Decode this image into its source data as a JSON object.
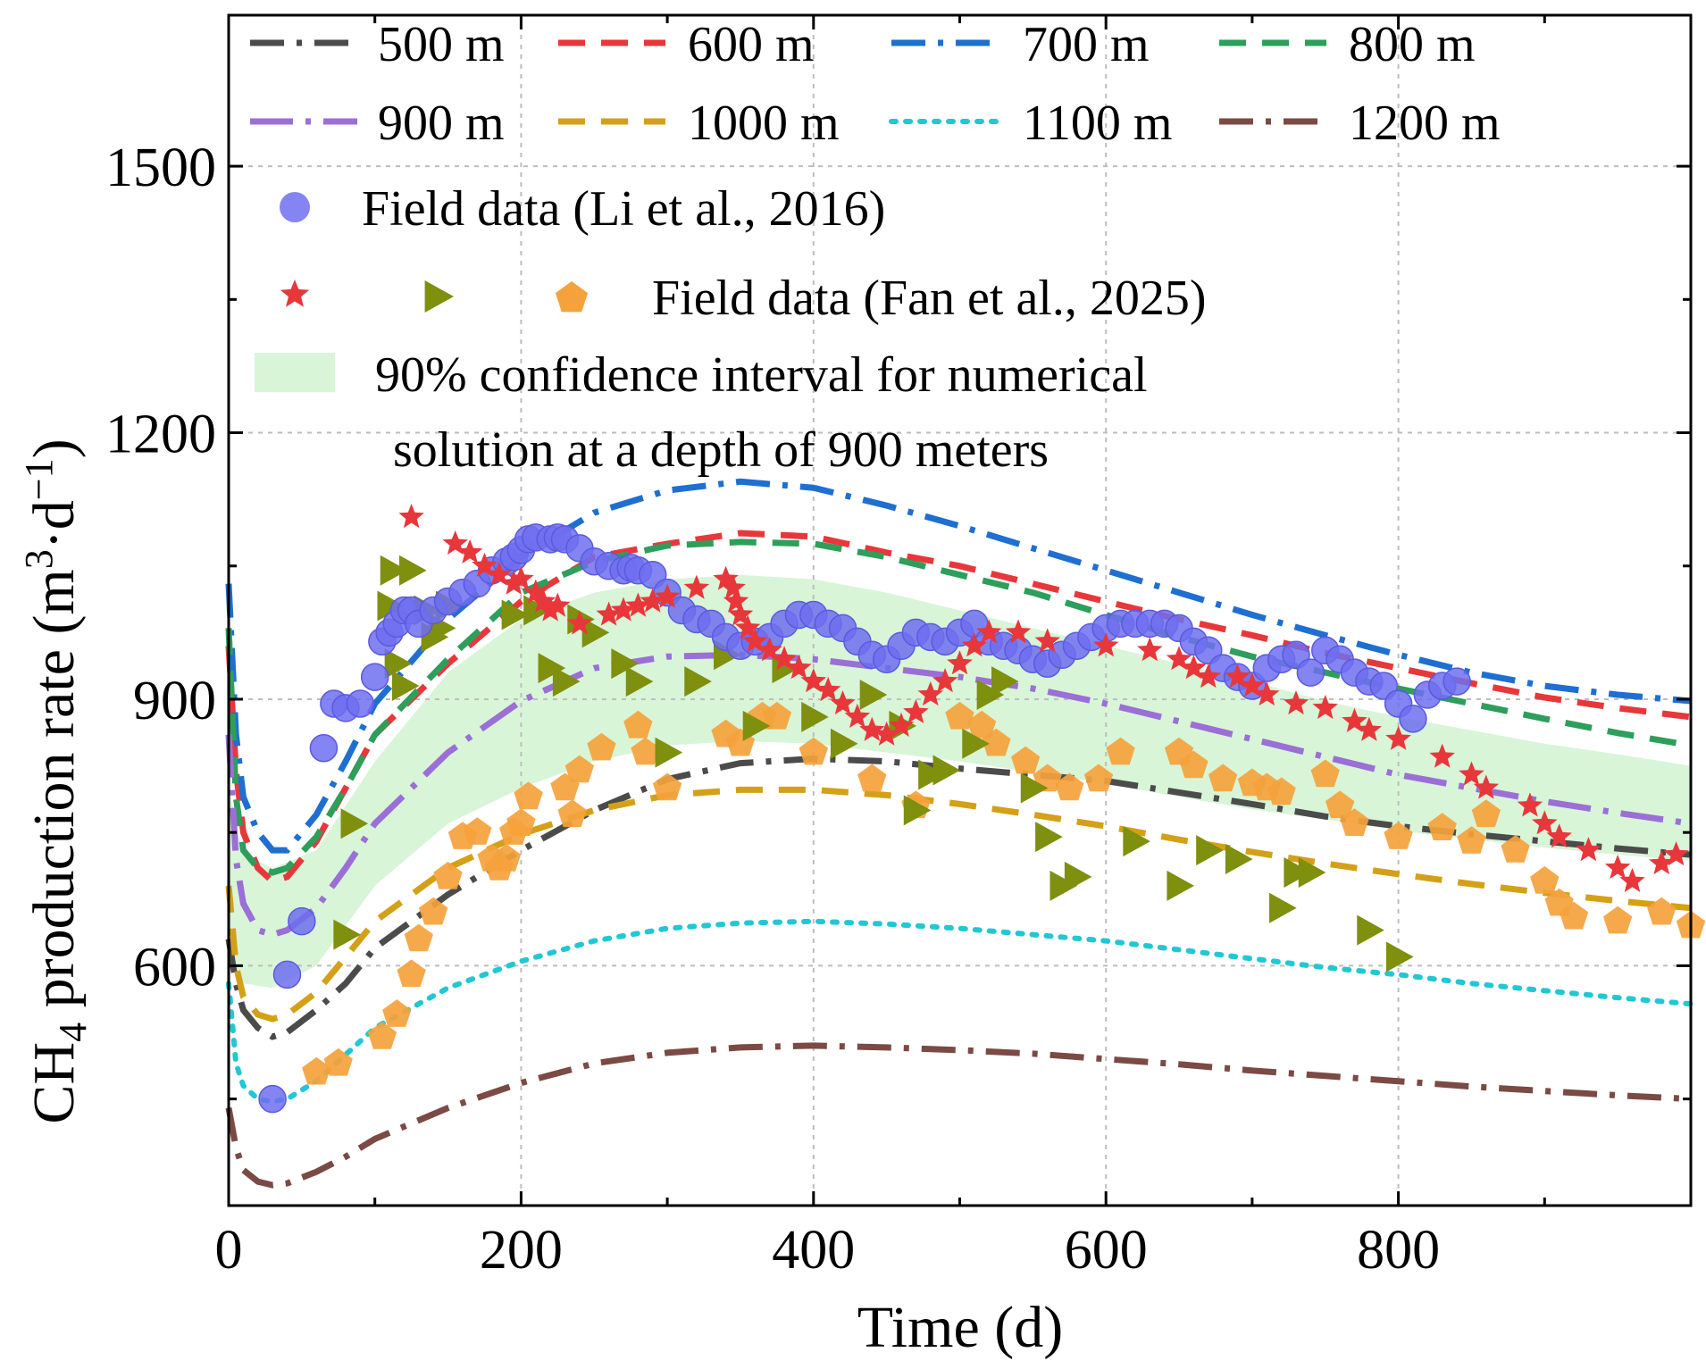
{
  "chart_data": {
    "type": "line",
    "xlabel": "Time (d)",
    "ylabel_parts": {
      "a": "CH",
      "sub": "4",
      "b": " production rate (m",
      "sup1": "3",
      "c": "·d",
      "sup2": "−1",
      "d": ")"
    },
    "xlim": [
      0,
      1000
    ],
    "ylim": [
      330,
      1670
    ],
    "x_ticks": [
      0,
      200,
      400,
      600,
      800
    ],
    "x_minor_ticks": [
      100,
      300,
      500,
      700,
      900
    ],
    "y_ticks": [
      600,
      900,
      1200,
      1500
    ],
    "y_minor_ticks": [
      450,
      750,
      1050,
      1350
    ],
    "grid": true,
    "series": [
      {
        "name": "500 m",
        "color": "#4b4b4b",
        "dash": "dashdot",
        "x": [
          0,
          5,
          10,
          20,
          30,
          40,
          60,
          80,
          100,
          150,
          200,
          250,
          300,
          350,
          400,
          450,
          500,
          550,
          600,
          650,
          700,
          750,
          800,
          850,
          900,
          950,
          1000
        ],
        "y": [
          630,
          580,
          550,
          530,
          520,
          525,
          550,
          580,
          620,
          680,
          730,
          775,
          810,
          828,
          833,
          830,
          822,
          815,
          808,
          795,
          782,
          768,
          757,
          748,
          740,
          732,
          725
        ]
      },
      {
        "name": "600 m",
        "color": "#e8373b",
        "dash": "dash",
        "x": [
          0,
          5,
          10,
          20,
          30,
          40,
          60,
          80,
          100,
          150,
          200,
          250,
          300,
          350,
          400,
          450,
          500,
          550,
          600,
          650,
          700,
          750,
          800,
          850,
          900,
          950,
          1000
        ],
        "y": [
          960,
          820,
          750,
          710,
          695,
          700,
          740,
          800,
          860,
          940,
          1010,
          1060,
          1075,
          1087,
          1083,
          1065,
          1050,
          1030,
          1010,
          990,
          972,
          952,
          935,
          918,
          902,
          890,
          880
        ]
      },
      {
        "name": "700 m",
        "color": "#1f6fd1",
        "dash": "dashdot",
        "x": [
          0,
          5,
          10,
          20,
          30,
          40,
          60,
          80,
          100,
          150,
          200,
          250,
          300,
          350,
          400,
          450,
          500,
          550,
          600,
          650,
          700,
          750,
          800,
          850,
          900,
          950,
          1000
        ],
        "y": [
          1030,
          860,
          790,
          750,
          730,
          730,
          770,
          830,
          895,
          990,
          1060,
          1110,
          1135,
          1145,
          1138,
          1118,
          1095,
          1070,
          1045,
          1020,
          995,
          972,
          950,
          930,
          915,
          905,
          898
        ]
      },
      {
        "name": "800 m",
        "color": "#2e9e5b",
        "dash": "dash",
        "x": [
          0,
          5,
          10,
          20,
          30,
          40,
          60,
          80,
          100,
          150,
          200,
          250,
          300,
          350,
          400,
          450,
          500,
          550,
          600,
          650,
          700,
          750,
          800,
          850,
          900,
          950,
          1000
        ],
        "y": [
          980,
          790,
          730,
          710,
          705,
          710,
          745,
          800,
          860,
          945,
          1020,
          1055,
          1073,
          1077,
          1075,
          1060,
          1040,
          1020,
          995,
          970,
          948,
          930,
          912,
          895,
          878,
          862,
          848
        ]
      },
      {
        "name": "900 m",
        "color": "#9b6fd6",
        "dash": "longdashdot",
        "x": [
          0,
          5,
          10,
          20,
          30,
          40,
          60,
          80,
          100,
          150,
          200,
          250,
          300,
          350,
          400,
          450,
          500,
          550,
          600,
          650,
          700,
          750,
          800,
          850,
          900,
          950,
          1000
        ],
        "y": [
          860,
          720,
          670,
          640,
          635,
          640,
          665,
          710,
          760,
          840,
          898,
          935,
          948,
          950,
          945,
          935,
          925,
          912,
          895,
          875,
          855,
          835,
          815,
          800,
          785,
          772,
          760
        ]
      },
      {
        "name": "1000 m",
        "color": "#d4a017",
        "dash": "dash",
        "x": [
          0,
          5,
          10,
          20,
          30,
          40,
          60,
          80,
          100,
          150,
          200,
          250,
          300,
          350,
          400,
          450,
          500,
          550,
          600,
          650,
          700,
          750,
          800,
          850,
          900,
          950,
          1000
        ],
        "y": [
          690,
          600,
          565,
          545,
          540,
          545,
          570,
          610,
          650,
          710,
          748,
          775,
          792,
          798,
          798,
          792,
          782,
          770,
          757,
          742,
          728,
          715,
          703,
          692,
          682,
          673,
          665
        ]
      },
      {
        "name": "1100 m",
        "color": "#22c7d4",
        "dash": "dot",
        "x": [
          0,
          5,
          10,
          20,
          30,
          40,
          60,
          80,
          100,
          150,
          200,
          250,
          300,
          350,
          400,
          450,
          500,
          550,
          600,
          650,
          700,
          750,
          800,
          850,
          900,
          950,
          1000
        ],
        "y": [
          580,
          490,
          465,
          450,
          447,
          450,
          470,
          500,
          530,
          575,
          605,
          628,
          642,
          648,
          650,
          647,
          642,
          635,
          628,
          618,
          608,
          598,
          590,
          580,
          572,
          564,
          557
        ]
      },
      {
        "name": "1200 m",
        "color": "#7b4a44",
        "dash": "dashdot",
        "x": [
          0,
          5,
          10,
          20,
          30,
          40,
          60,
          80,
          100,
          150,
          200,
          250,
          300,
          350,
          400,
          450,
          500,
          550,
          600,
          650,
          700,
          750,
          800,
          850,
          900,
          950,
          1000
        ],
        "y": [
          440,
          395,
          370,
          357,
          353,
          355,
          368,
          385,
          405,
          440,
          468,
          490,
          502,
          508,
          510,
          508,
          505,
          501,
          495,
          489,
          482,
          476,
          470,
          464,
          459,
          454,
          450
        ]
      }
    ],
    "confidence_band": {
      "name": "90% confidence interval for numerical",
      "name_line2": "solution at a depth of 900 meters",
      "color": "#d8f5d8",
      "x": [
        0,
        10,
        30,
        60,
        100,
        150,
        200,
        250,
        300,
        350,
        400,
        450,
        500,
        550,
        600,
        650,
        700,
        750,
        800,
        850,
        900,
        950,
        1000
      ],
      "upper": [
        800,
        725,
        710,
        730,
        830,
        930,
        990,
        1020,
        1035,
        1040,
        1035,
        1020,
        1000,
        980,
        960,
        940,
        920,
        898,
        880,
        865,
        850,
        838,
        825
      ],
      "lower": [
        600,
        580,
        575,
        600,
        690,
        760,
        800,
        830,
        848,
        853,
        850,
        840,
        830,
        818,
        805,
        790,
        776,
        765,
        752,
        742,
        733,
        725,
        718
      ]
    },
    "field_data_li": {
      "name": "Field data (Li et al., 2016)",
      "color": "#6f6ff0",
      "x": [
        30,
        40,
        50,
        65,
        72,
        80,
        90,
        100,
        105,
        110,
        115,
        120,
        125,
        130,
        140,
        150,
        160,
        170,
        180,
        190,
        195,
        200,
        205,
        210,
        220,
        225,
        230,
        240,
        250,
        260,
        270,
        275,
        280,
        290,
        300,
        310,
        320,
        330,
        340,
        350,
        360,
        370,
        380,
        390,
        400,
        410,
        420,
        430,
        440,
        450,
        460,
        470,
        480,
        490,
        500,
        510,
        520,
        530,
        540,
        550,
        560,
        570,
        580,
        590,
        600,
        610,
        620,
        630,
        640,
        650,
        660,
        670,
        680,
        690,
        700,
        710,
        720,
        730,
        740,
        750,
        760,
        770,
        780,
        790,
        800,
        810,
        820,
        830,
        840
      ],
      "y": [
        450,
        590,
        650,
        845,
        895,
        890,
        895,
        925,
        965,
        975,
        985,
        1000,
        1000,
        985,
        1000,
        1010,
        1020,
        1030,
        1045,
        1055,
        1060,
        1068,
        1080,
        1082,
        1080,
        1082,
        1080,
        1070,
        1055,
        1050,
        1045,
        1048,
        1045,
        1040,
        1020,
        1000,
        990,
        985,
        970,
        960,
        965,
        970,
        985,
        995,
        995,
        985,
        980,
        965,
        950,
        945,
        960,
        975,
        970,
        965,
        975,
        985,
        965,
        960,
        955,
        945,
        940,
        950,
        960,
        970,
        980,
        985,
        985,
        985,
        985,
        980,
        965,
        955,
        935,
        925,
        915,
        935,
        945,
        950,
        930,
        955,
        945,
        930,
        920,
        915,
        895,
        878,
        905,
        915,
        920
      ]
    },
    "field_data_fan": {
      "name": "Field data (Fan et al., 2025)",
      "star_color": "#e8373b",
      "triangle_color": "#7f8f0e",
      "pentagon_color": "#f5a23c",
      "stars": {
        "x": [
          125,
          155,
          165,
          175,
          185,
          195,
          200,
          210,
          215,
          220,
          225,
          240,
          260,
          270,
          280,
          290,
          300,
          320,
          340,
          345,
          347,
          350,
          355,
          360,
          370,
          380,
          390,
          400,
          410,
          420,
          430,
          440,
          450,
          460,
          470,
          480,
          490,
          500,
          510,
          520,
          540,
          560,
          600,
          630,
          650,
          660,
          670,
          690,
          700,
          710,
          730,
          750,
          770,
          780,
          800,
          830,
          850,
          860,
          890,
          900,
          910,
          930,
          950,
          960,
          980,
          990
        ],
        "y": [
          1105,
          1075,
          1065,
          1050,
          1040,
          1030,
          1035,
          1020,
          1010,
          1000,
          1005,
          985,
          995,
          1000,
          1005,
          1010,
          1015,
          1025,
          1035,
          1025,
          1010,
          995,
          980,
          965,
          955,
          945,
          935,
          920,
          910,
          895,
          880,
          865,
          860,
          870,
          885,
          905,
          920,
          940,
          960,
          975,
          975,
          965,
          960,
          955,
          945,
          935,
          925,
          925,
          915,
          905,
          895,
          890,
          875,
          865,
          855,
          835,
          815,
          800,
          780,
          760,
          745,
          730,
          710,
          695,
          715,
          725
        ]
      },
      "triangles": {
        "x": [
          80,
          85,
          110,
          112,
          115,
          120,
          125,
          135,
          140,
          145,
          150,
          195,
          210,
          220,
          230,
          240,
          250,
          270,
          280,
          300,
          320,
          340,
          360,
          380,
          400,
          420,
          440,
          460,
          470,
          480,
          490,
          510,
          520,
          530,
          550,
          560,
          570,
          580,
          620,
          650,
          670,
          690,
          720,
          730,
          740,
          780,
          800
        ],
        "y": [
          635,
          760,
          1005,
          1045,
          940,
          915,
          1045,
          1000,
          970,
          980,
          1005,
          995,
          1000,
          935,
          920,
          990,
          975,
          940,
          920,
          840,
          920,
          950,
          870,
          935,
          880,
          850,
          905,
          870,
          775,
          815,
          820,
          850,
          905,
          920,
          800,
          745,
          690,
          700,
          740,
          690,
          730,
          720,
          665,
          705,
          705,
          640,
          610
        ]
      },
      "pentagons": {
        "x": [
          60,
          75,
          105,
          115,
          125,
          130,
          140,
          150,
          160,
          170,
          180,
          185,
          190,
          195,
          200,
          205,
          230,
          235,
          240,
          255,
          280,
          285,
          300,
          340,
          350,
          365,
          375,
          400,
          440,
          470,
          500,
          515,
          525,
          545,
          560,
          575,
          595,
          610,
          650,
          660,
          680,
          700,
          710,
          720,
          750,
          760,
          770,
          800,
          830,
          850,
          860,
          880,
          900,
          910,
          920,
          950,
          980,
          1000
        ],
        "y": [
          480,
          490,
          520,
          545,
          590,
          630,
          660,
          700,
          745,
          750,
          720,
          710,
          720,
          750,
          760,
          790,
          800,
          770,
          820,
          845,
          870,
          840,
          800,
          860,
          850,
          880,
          880,
          840,
          810,
          780,
          880,
          870,
          850,
          830,
          810,
          800,
          810,
          840,
          840,
          825,
          810,
          805,
          800,
          795,
          815,
          780,
          760,
          745,
          755,
          740,
          770,
          730,
          695,
          670,
          655,
          650,
          660,
          645
        ]
      }
    }
  }
}
